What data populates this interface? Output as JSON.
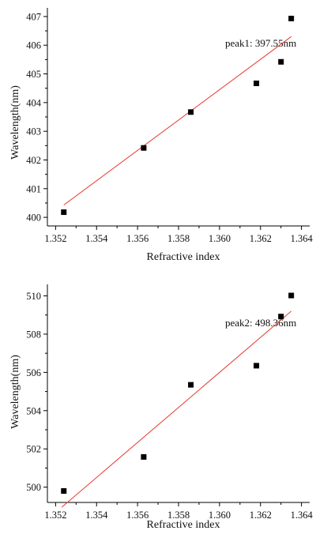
{
  "chart_data": [
    {
      "type": "scatter",
      "xlabel": "Refractive index",
      "ylabel": "Wavelength(nm)",
      "xlim": [
        1.3516,
        1.3644
      ],
      "ylim": [
        399.7,
        407.3
      ],
      "x_ticks": [
        "1.352",
        "1.354",
        "1.356",
        "1.358",
        "1.360",
        "1.362",
        "1.364"
      ],
      "y_ticks": [
        "400",
        "401",
        "402",
        "403",
        "404",
        "405",
        "406",
        "407"
      ],
      "x_tick_values": [
        1.352,
        1.354,
        1.356,
        1.358,
        1.36,
        1.362,
        1.364
      ],
      "y_tick_values": [
        400,
        401,
        402,
        403,
        404,
        405,
        406,
        407
      ],
      "series": [
        {
          "x": [
            1.3524,
            1.3563,
            1.3586,
            1.3618,
            1.363,
            1.3635
          ],
          "y": [
            400.18,
            402.42,
            403.67,
            404.67,
            405.42,
            406.93
          ]
        }
      ],
      "fit_line": {
        "x": [
          1.3524,
          1.3635
        ],
        "y": [
          400.43,
          406.3
        ],
        "color": "#e8392f"
      },
      "annotation": "peak1: 397.55nm",
      "grid": false,
      "marker_color": "#000000"
    },
    {
      "type": "scatter",
      "xlabel": "Refractive index",
      "ylabel": "Wavelength(nm)",
      "xlim": [
        1.3516,
        1.3644
      ],
      "ylim": [
        499.2,
        510.6
      ],
      "x_ticks": [
        "1.352",
        "1.354",
        "1.356",
        "1.358",
        "1.360",
        "1.362",
        "1.364"
      ],
      "y_ticks": [
        "500",
        "502",
        "504",
        "506",
        "508",
        "510"
      ],
      "x_tick_values": [
        1.352,
        1.354,
        1.356,
        1.358,
        1.36,
        1.362,
        1.364
      ],
      "y_tick_values": [
        500,
        502,
        504,
        506,
        508,
        510
      ],
      "series": [
        {
          "x": [
            1.3524,
            1.3563,
            1.3586,
            1.3618,
            1.363,
            1.3635
          ],
          "y": [
            499.8,
            501.58,
            505.35,
            506.35,
            508.92,
            510.02
          ]
        }
      ],
      "fit_line": {
        "x": [
          1.3523,
          1.3635
        ],
        "y": [
          498.95,
          509.2
        ],
        "color": "#e8392f"
      },
      "annotation": "peak2: 498.36nm",
      "grid": false,
      "marker_color": "#000000"
    }
  ]
}
